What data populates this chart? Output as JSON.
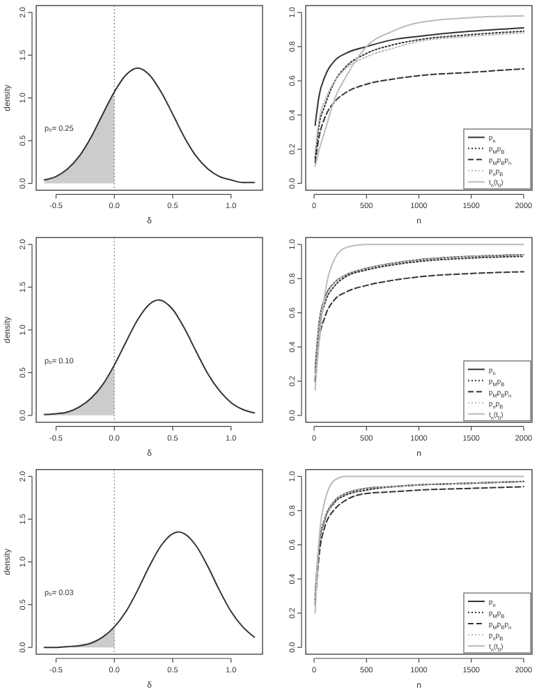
{
  "chart_data": [
    {
      "type": "line",
      "xlabel": "δ",
      "ylabel": "density",
      "xlim": [
        -0.67,
        1.27
      ],
      "xticks": [
        -0.5,
        {
          "value": 0,
          "label": "0.0"
        },
        {
          "value": 0.5,
          "label": "0.5"
        },
        {
          "value": 1,
          "label": "1.0"
        }
      ],
      "ylim": [
        -0.08,
        2.08
      ],
      "yticks": [
        {
          "value": 0,
          "label": "0.0"
        },
        {
          "value": 0.5,
          "label": "0.5"
        },
        {
          "value": 1,
          "label": "1.0"
        },
        {
          "value": 1.5,
          "label": "1.5"
        },
        {
          "value": 2,
          "label": "2.0"
        }
      ],
      "ref_lines": [
        {
          "axis": "x",
          "value": 0,
          "color": "#999999",
          "line_style": "dotted"
        }
      ],
      "annotations": [
        "p₀= 0.25"
      ],
      "series": [
        {
          "type": "area",
          "color": "#cccccc",
          "x": [
            -0.6,
            -0.5,
            -0.4,
            -0.3,
            -0.2,
            -0.1,
            0
          ],
          "values": [
            0.04,
            0.08,
            0.17,
            0.32,
            0.54,
            0.81,
            1.07
          ]
        },
        {
          "type": "line",
          "color": "#333333",
          "x": [
            -0.6,
            -0.5,
            -0.4,
            -0.3,
            -0.2,
            -0.1,
            0,
            0.1,
            0.2,
            0.3,
            0.4,
            0.5,
            0.6,
            0.7,
            0.8,
            0.9,
            1.0,
            1.1,
            1.2
          ],
          "values": [
            0.04,
            0.08,
            0.17,
            0.32,
            0.54,
            0.81,
            1.07,
            1.27,
            1.35,
            1.27,
            1.07,
            0.81,
            0.54,
            0.32,
            0.17,
            0.08,
            0.04,
            0.01,
            0.01
          ]
        }
      ]
    },
    {
      "type": "line",
      "xlabel": "n",
      "xlim": [
        -80,
        2080
      ],
      "xticks": [
        0,
        500,
        1000,
        1500,
        2000
      ],
      "ylim": [
        -0.04,
        1.04
      ],
      "yticks": [
        {
          "value": 0,
          "label": "0.0"
        },
        {
          "value": 0.2,
          "label": "0.2"
        },
        {
          "value": 0.4,
          "label": "0.4"
        },
        {
          "value": 0.6,
          "label": "0.6"
        },
        {
          "value": 0.8,
          "label": "0.8"
        },
        {
          "value": 1,
          "label": "1.0"
        }
      ],
      "legend": "bottom right",
      "series": [
        {
          "name": "p$_{n}$",
          "color": "#333333",
          "line_style": "solid",
          "x": [
            10,
            50,
            100,
            200,
            300,
            500,
            750,
            1000,
            1500,
            2000
          ],
          "values": [
            0.34,
            0.52,
            0.62,
            0.72,
            0.76,
            0.8,
            0.84,
            0.86,
            0.89,
            0.91
          ]
        },
        {
          "name": "p$_{M}$p$_{B}$",
          "color": "#333333",
          "line_style": "dotted",
          "x": [
            10,
            50,
            100,
            200,
            300,
            500,
            750,
            1000,
            1500,
            2000
          ],
          "values": [
            0.15,
            0.35,
            0.45,
            0.6,
            0.68,
            0.76,
            0.81,
            0.84,
            0.87,
            0.89
          ]
        },
        {
          "name": "p$_{M}$p$_{B}$p$_{n}$",
          "color": "#333333",
          "line_style": "dashed",
          "x": [
            10,
            50,
            100,
            200,
            300,
            500,
            750,
            1000,
            1500,
            2000
          ],
          "values": [
            0.12,
            0.28,
            0.38,
            0.48,
            0.53,
            0.58,
            0.61,
            0.63,
            0.65,
            0.67
          ]
        },
        {
          "name": "p$_{n}$p$_{B}$",
          "color": "#bbbbbb",
          "line_style": "dotted",
          "x": [
            10,
            50,
            100,
            200,
            300,
            500,
            750,
            1000,
            1500,
            2000
          ],
          "values": [
            0.18,
            0.38,
            0.48,
            0.6,
            0.67,
            0.74,
            0.79,
            0.83,
            0.86,
            0.88
          ]
        },
        {
          "name": "t$_{n}$(t$_{0}$)",
          "color": "#bbbbbb",
          "line_style": "solid",
          "x": [
            10,
            50,
            100,
            200,
            300,
            500,
            750,
            1000,
            1500,
            2000
          ],
          "values": [
            0.1,
            0.2,
            0.3,
            0.5,
            0.62,
            0.8,
            0.89,
            0.94,
            0.97,
            0.98
          ]
        }
      ]
    },
    {
      "type": "line",
      "xlabel": "δ",
      "ylabel": "density",
      "xlim": [
        -0.67,
        1.27
      ],
      "xticks": [
        -0.5,
        {
          "value": 0,
          "label": "0.0"
        },
        {
          "value": 0.5,
          "label": "0.5"
        },
        {
          "value": 1,
          "label": "1.0"
        }
      ],
      "ylim": [
        -0.08,
        2.08
      ],
      "yticks": [
        {
          "value": 0,
          "label": "0.0"
        },
        {
          "value": 0.5,
          "label": "0.5"
        },
        {
          "value": 1,
          "label": "1.0"
        },
        {
          "value": 1.5,
          "label": "1.5"
        },
        {
          "value": 2,
          "label": "2.0"
        }
      ],
      "ref_lines": [
        {
          "axis": "x",
          "value": 0,
          "color": "#999999",
          "line_style": "dotted"
        }
      ],
      "annotations": [
        "p₀= 0.10"
      ],
      "series": [
        {
          "type": "area",
          "color": "#cccccc",
          "x": [
            -0.6,
            -0.5,
            -0.4,
            -0.3,
            -0.2,
            -0.1,
            0
          ],
          "values": [
            0.01,
            0.02,
            0.04,
            0.1,
            0.2,
            0.36,
            0.59
          ]
        },
        {
          "type": "line",
          "color": "#333333",
          "x": [
            -0.6,
            -0.5,
            -0.4,
            -0.3,
            -0.2,
            -0.1,
            0,
            0.1,
            0.2,
            0.3,
            0.38,
            0.5,
            0.6,
            0.7,
            0.8,
            0.9,
            1.0,
            1.1,
            1.2
          ],
          "values": [
            0.01,
            0.02,
            0.04,
            0.1,
            0.2,
            0.36,
            0.59,
            0.86,
            1.12,
            1.3,
            1.35,
            1.24,
            1.02,
            0.75,
            0.49,
            0.29,
            0.15,
            0.07,
            0.03
          ]
        }
      ]
    },
    {
      "type": "line",
      "xlabel": "n",
      "xlim": [
        -80,
        2080
      ],
      "xticks": [
        0,
        500,
        1000,
        1500,
        2000
      ],
      "ylim": [
        -0.04,
        1.04
      ],
      "yticks": [
        {
          "value": 0,
          "label": "0.0"
        },
        {
          "value": 0.2,
          "label": "0.2"
        },
        {
          "value": 0.4,
          "label": "0.4"
        },
        {
          "value": 0.6,
          "label": "0.6"
        },
        {
          "value": 0.8,
          "label": "0.8"
        },
        {
          "value": 1,
          "label": "1.0"
        }
      ],
      "legend": "bottom right",
      "series": [
        {
          "name": "p$_{n}$",
          "color": "#333333",
          "line_style": "solid",
          "x": [
            10,
            50,
            100,
            200,
            300,
            500,
            750,
            1000,
            1500,
            2000
          ],
          "values": [
            0.27,
            0.55,
            0.68,
            0.78,
            0.82,
            0.86,
            0.89,
            0.91,
            0.93,
            0.94
          ]
        },
        {
          "name": "p$_{M}$p$_{B}$",
          "color": "#333333",
          "line_style": "dotted",
          "x": [
            10,
            50,
            100,
            200,
            300,
            500,
            750,
            1000,
            1500,
            2000
          ],
          "values": [
            0.25,
            0.52,
            0.65,
            0.76,
            0.81,
            0.85,
            0.88,
            0.9,
            0.92,
            0.93
          ]
        },
        {
          "name": "p$_{M}$p$_{B}$p$_{n}$",
          "color": "#333333",
          "line_style": "dashed",
          "x": [
            10,
            50,
            100,
            200,
            300,
            500,
            750,
            1000,
            1500,
            2000
          ],
          "values": [
            0.2,
            0.45,
            0.57,
            0.68,
            0.72,
            0.76,
            0.79,
            0.81,
            0.83,
            0.84
          ]
        },
        {
          "name": "p$_{n}$p$_{B}$",
          "color": "#bbbbbb",
          "line_style": "dotted",
          "x": [
            10,
            50,
            100,
            200,
            300,
            500,
            750,
            1000,
            1500,
            2000
          ],
          "values": [
            0.25,
            0.54,
            0.67,
            0.78,
            0.82,
            0.86,
            0.89,
            0.91,
            0.93,
            0.94
          ]
        },
        {
          "name": "t$_{n}$(t$_{0}$)",
          "color": "#bbbbbb",
          "line_style": "solid",
          "x": [
            10,
            50,
            100,
            200,
            300,
            500,
            750,
            1000,
            1500,
            2000
          ],
          "values": [
            0.15,
            0.45,
            0.7,
            0.92,
            0.98,
            1.0,
            1.0,
            1.0,
            1.0,
            1.0
          ]
        }
      ]
    },
    {
      "type": "line",
      "xlabel": "δ",
      "ylabel": "density",
      "xlim": [
        -0.67,
        1.27
      ],
      "xticks": [
        -0.5,
        {
          "value": 0,
          "label": "0.0"
        },
        {
          "value": 0.5,
          "label": "0.5"
        },
        {
          "value": 1,
          "label": "1.0"
        }
      ],
      "ylim": [
        -0.08,
        2.08
      ],
      "yticks": [
        {
          "value": 0,
          "label": "0.0"
        },
        {
          "value": 0.5,
          "label": "0.5"
        },
        {
          "value": 1,
          "label": "1.0"
        },
        {
          "value": 1.5,
          "label": "1.5"
        },
        {
          "value": 2,
          "label": "2.0"
        }
      ],
      "ref_lines": [
        {
          "axis": "x",
          "value": 0,
          "color": "#999999",
          "line_style": "dotted"
        }
      ],
      "annotations": [
        "p₀= 0.03"
      ],
      "series": [
        {
          "type": "area",
          "color": "#cccccc",
          "x": [
            -0.6,
            -0.5,
            -0.4,
            -0.3,
            -0.2,
            -0.1,
            0
          ],
          "values": [
            0,
            0,
            0.01,
            0.02,
            0.05,
            0.12,
            0.24
          ]
        },
        {
          "type": "line",
          "color": "#333333",
          "x": [
            -0.6,
            -0.5,
            -0.4,
            -0.3,
            -0.2,
            -0.1,
            0,
            0.1,
            0.2,
            0.3,
            0.4,
            0.5,
            0.55,
            0.6,
            0.7,
            0.8,
            0.9,
            1.0,
            1.1,
            1.2
          ],
          "values": [
            0,
            0,
            0.01,
            0.02,
            0.05,
            0.12,
            0.24,
            0.42,
            0.67,
            0.95,
            1.19,
            1.33,
            1.35,
            1.33,
            1.19,
            0.95,
            0.67,
            0.42,
            0.24,
            0.12
          ]
        }
      ]
    },
    {
      "type": "line",
      "xlabel": "n",
      "xlim": [
        -80,
        2080
      ],
      "xticks": [
        0,
        500,
        1000,
        1500,
        2000
      ],
      "ylim": [
        -0.04,
        1.04
      ],
      "yticks": [
        {
          "value": 0,
          "label": "0.0"
        },
        {
          "value": 0.2,
          "label": "0.2"
        },
        {
          "value": 0.4,
          "label": "0.4"
        },
        {
          "value": 0.6,
          "label": "0.6"
        },
        {
          "value": 0.8,
          "label": "0.8"
        },
        {
          "value": 1,
          "label": "1.0"
        }
      ],
      "legend": "bottom right",
      "series": [
        {
          "name": "p$_{n}$",
          "color": "#333333",
          "line_style": "solid",
          "x": [
            10,
            50,
            100,
            200,
            300,
            500,
            750,
            1000,
            1500,
            2000
          ],
          "values": [
            0.3,
            0.62,
            0.75,
            0.86,
            0.9,
            0.93,
            0.94,
            0.95,
            0.96,
            0.97
          ]
        },
        {
          "name": "p$_{M}$p$_{B}$",
          "color": "#333333",
          "line_style": "dotted",
          "x": [
            10,
            50,
            100,
            200,
            300,
            500,
            750,
            1000,
            1500,
            2000
          ],
          "values": [
            0.28,
            0.6,
            0.74,
            0.85,
            0.89,
            0.92,
            0.94,
            0.95,
            0.96,
            0.97
          ]
        },
        {
          "name": "p$_{M}$p$_{B}$p$_{n}$",
          "color": "#333333",
          "line_style": "dashed",
          "x": [
            10,
            50,
            100,
            200,
            300,
            500,
            750,
            1000,
            1500,
            2000
          ],
          "values": [
            0.25,
            0.55,
            0.7,
            0.81,
            0.86,
            0.9,
            0.91,
            0.92,
            0.93,
            0.94
          ]
        },
        {
          "name": "p$_{n}$p$_{B}$",
          "color": "#bbbbbb",
          "line_style": "dotted",
          "x": [
            10,
            50,
            100,
            200,
            300,
            500,
            750,
            1000,
            1500,
            2000
          ],
          "values": [
            0.3,
            0.62,
            0.75,
            0.86,
            0.9,
            0.93,
            0.94,
            0.95,
            0.96,
            0.97
          ]
        },
        {
          "name": "t$_{n}$(t$_{0}$)",
          "color": "#bbbbbb",
          "line_style": "solid",
          "x": [
            10,
            50,
            100,
            200,
            300,
            500,
            750,
            1000,
            1500,
            2000
          ],
          "values": [
            0.2,
            0.65,
            0.85,
            0.98,
            1.0,
            1.0,
            1.0,
            1.0,
            1.0,
            1.0
          ]
        }
      ]
    }
  ]
}
